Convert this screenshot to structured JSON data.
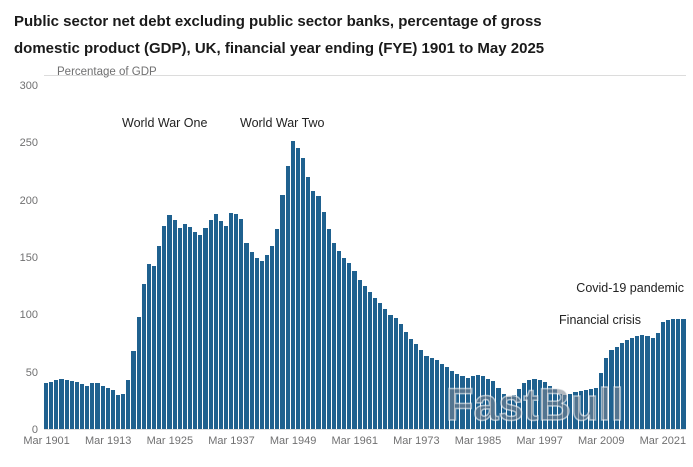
{
  "title": {
    "line1": "Public sector net debt excluding public sector banks, percentage of gross",
    "line2": "domestic product (GDP), UK, financial year ending (FYE) 1901 to May 2025"
  },
  "watermark": "FastBull",
  "chart_data": {
    "type": "bar",
    "title": "Public sector net debt excluding public sector banks, percentage of gross domestic product (GDP), UK, financial year ending (FYE) 1901 to May 2025",
    "ylabel": "Percentage of GDP",
    "xlabel": "",
    "ylim": [
      0,
      300
    ],
    "y_ticks": [
      0,
      50,
      100,
      150,
      200,
      250,
      300
    ],
    "grid": "single light gridline at top (300), light baseline at 0",
    "legend": "none",
    "bar_color": "#1f618f",
    "start_year": 1901,
    "end_period": "May 2025",
    "x_ticks": [
      {
        "year": 1901,
        "label": "Mar 1901"
      },
      {
        "year": 1913,
        "label": "Mar 1913"
      },
      {
        "year": 1925,
        "label": "Mar 1925"
      },
      {
        "year": 1937,
        "label": "Mar 1937"
      },
      {
        "year": 1949,
        "label": "Mar 1949"
      },
      {
        "year": 1961,
        "label": "Mar 1961"
      },
      {
        "year": 1973,
        "label": "Mar 1973"
      },
      {
        "year": 1985,
        "label": "Mar 1985"
      },
      {
        "year": 1997,
        "label": "Mar 1997"
      },
      {
        "year": 2009,
        "label": "Mar 2009"
      },
      {
        "year": 2021,
        "label": "Mar 2021"
      }
    ],
    "annotations": [
      {
        "label": "World War One",
        "near_year": 1922,
        "y_value": 265
      },
      {
        "label": "World War Two",
        "near_year": 1947,
        "y_value": 265
      },
      {
        "label": "Covid-19 pandemic",
        "near_year": 2021,
        "y_value": 125
      },
      {
        "label": "Financial crisis",
        "near_year": 2009,
        "y_value": 98
      }
    ],
    "values": [
      40,
      41,
      43,
      44,
      43,
      42,
      41,
      39,
      38,
      40,
      40,
      38,
      36,
      34,
      30,
      31,
      43,
      68,
      98,
      127,
      144,
      143,
      160,
      178,
      187,
      183,
      176,
      179,
      177,
      172,
      170,
      176,
      183,
      188,
      182,
      178,
      189,
      188,
      184,
      163,
      155,
      150,
      147,
      152,
      160,
      175,
      205,
      230,
      252,
      246,
      237,
      220,
      208,
      204,
      190,
      175,
      163,
      156,
      150,
      145,
      138,
      130,
      125,
      120,
      115,
      110,
      105,
      100,
      97,
      92,
      85,
      79,
      74,
      69,
      64,
      62,
      60,
      57,
      54,
      51,
      48,
      46,
      45,
      46,
      47,
      46,
      44,
      42,
      36,
      31,
      28,
      30,
      35,
      40,
      43,
      44,
      43,
      41,
      38,
      35,
      31,
      30,
      31,
      32,
      33,
      34,
      35,
      36,
      49,
      62,
      69,
      72,
      75,
      78,
      80,
      81,
      82,
      81,
      80,
      84,
      94,
      95,
      96,
      96,
      96
    ]
  }
}
